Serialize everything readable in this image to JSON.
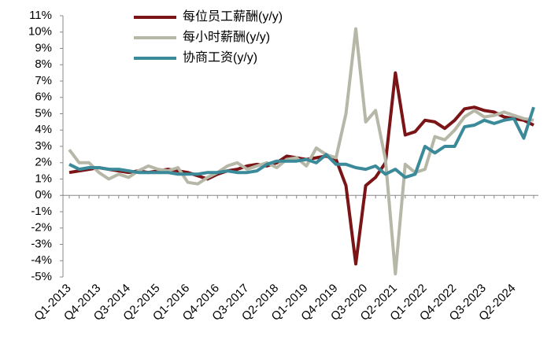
{
  "chart_data": {
    "type": "line",
    "categories": [
      "Q1-2013",
      null,
      null,
      "Q4-2013",
      null,
      null,
      "Q3-2014",
      null,
      null,
      "Q2-2015",
      null,
      null,
      "Q1-2016",
      null,
      null,
      "Q4-2016",
      null,
      null,
      "Q3-2017",
      null,
      null,
      "Q2-2018",
      null,
      null,
      "Q1-2019",
      null,
      null,
      "Q4-2019",
      null,
      null,
      "Q3-2020",
      null,
      null,
      "Q2-2021",
      null,
      null,
      "Q1-2022",
      null,
      null,
      "Q4-2022",
      null,
      null,
      "Q3-2023",
      null,
      null,
      "Q2-2024",
      null,
      null
    ],
    "series": [
      {
        "name": "每位员工薪酬(y/y)",
        "color": "#7b1416",
        "values": [
          1.4,
          1.5,
          1.6,
          1.7,
          1.6,
          1.5,
          1.4,
          1.5,
          1.4,
          1.5,
          1.6,
          1.5,
          1.4,
          1.2,
          1.0,
          1.3,
          1.5,
          1.6,
          1.8,
          1.9,
          1.8,
          2.0,
          2.4,
          2.3,
          2.2,
          2.3,
          2.4,
          2.2,
          0.6,
          -4.2,
          0.6,
          1.1,
          2.0,
          7.5,
          3.7,
          3.9,
          4.6,
          4.5,
          4.1,
          4.6,
          5.3,
          5.4,
          5.2,
          5.1,
          4.8,
          4.7,
          4.6,
          4.3
        ]
      },
      {
        "name": "每小时薪酬(y/y)",
        "color": "#b7b7a8",
        "values": [
          2.8,
          2.0,
          2.0,
          1.4,
          1.0,
          1.3,
          1.1,
          1.5,
          1.8,
          1.6,
          1.5,
          1.7,
          0.8,
          0.7,
          1.1,
          1.4,
          1.8,
          2.0,
          1.6,
          1.8,
          2.0,
          1.7,
          2.2,
          2.3,
          1.8,
          2.9,
          2.5,
          2.3,
          5.0,
          10.2,
          4.5,
          5.2,
          2.2,
          -4.8,
          1.9,
          1.4,
          1.6,
          3.6,
          3.4,
          4.0,
          4.8,
          5.2,
          4.8,
          4.9,
          5.1,
          4.9,
          4.7,
          4.6
        ]
      },
      {
        "name": "协商工资(y/y)",
        "color": "#3a8a99",
        "values": [
          1.9,
          1.6,
          1.7,
          1.7,
          1.6,
          1.6,
          1.5,
          1.4,
          1.4,
          1.4,
          1.4,
          1.3,
          1.3,
          1.3,
          1.4,
          1.4,
          1.5,
          1.4,
          1.4,
          1.5,
          1.9,
          2.1,
          2.1,
          2.1,
          2.2,
          2.0,
          2.5,
          1.9,
          1.9,
          1.7,
          1.6,
          1.8,
          1.3,
          1.6,
          1.1,
          1.3,
          3.0,
          2.6,
          3.0,
          3.0,
          4.2,
          4.3,
          4.6,
          4.4,
          4.6,
          4.7,
          3.5,
          5.4
        ]
      }
    ],
    "ylim": [
      -5,
      11
    ],
    "yticks": [
      {
        "value": -5,
        "label": "-5%"
      },
      {
        "value": -4,
        "label": "-4%"
      },
      {
        "value": -3,
        "label": "-3%"
      },
      {
        "value": -2,
        "label": "-2%"
      },
      {
        "value": -1,
        "label": "-1%"
      },
      {
        "value": 0,
        "label": "0%"
      },
      {
        "value": 1,
        "label": "1%"
      },
      {
        "value": 2,
        "label": "2%"
      },
      {
        "value": 3,
        "label": "3%"
      },
      {
        "value": 4,
        "label": "4%"
      },
      {
        "value": 5,
        "label": "5%"
      },
      {
        "value": 6,
        "label": "6%"
      },
      {
        "value": 7,
        "label": "7%"
      },
      {
        "value": 8,
        "label": "8%"
      },
      {
        "value": 9,
        "label": "9%"
      },
      {
        "value": 10,
        "label": "10%"
      },
      {
        "value": 11,
        "label": "11%"
      }
    ],
    "grid": false
  }
}
